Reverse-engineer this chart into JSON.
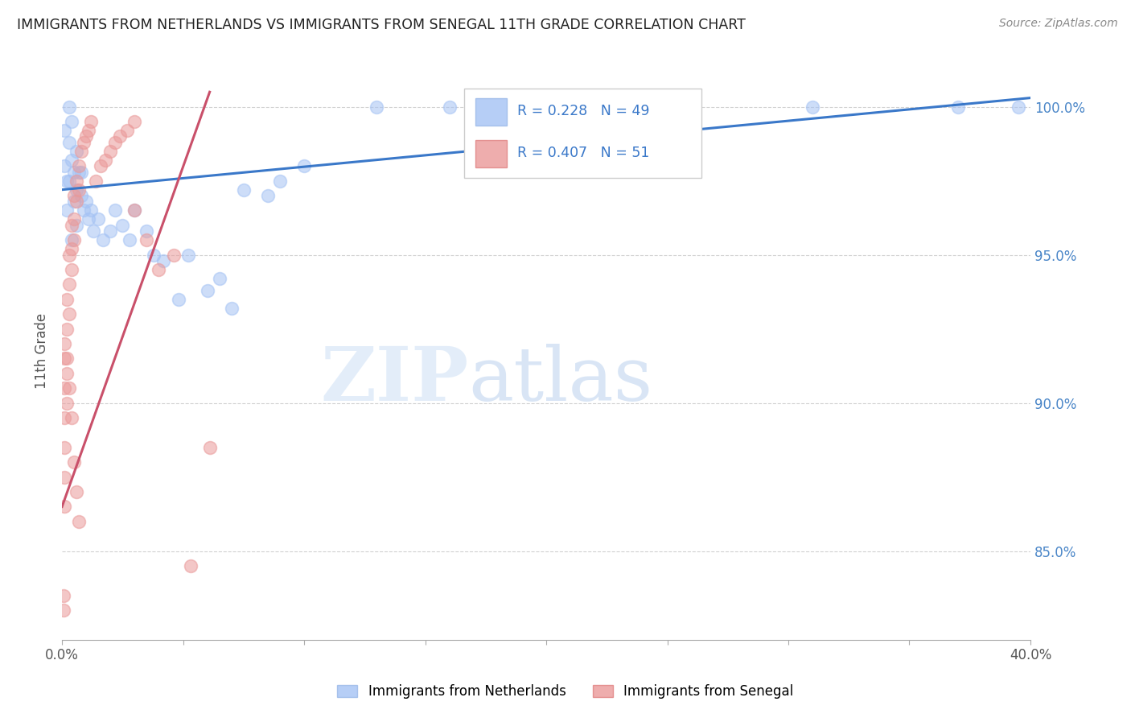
{
  "title": "IMMIGRANTS FROM NETHERLANDS VS IMMIGRANTS FROM SENEGAL 11TH GRADE CORRELATION CHART",
  "source": "Source: ZipAtlas.com",
  "ylabel": "11th Grade",
  "x_min": 0.0,
  "x_max": 0.4,
  "y_min": 82.0,
  "y_max": 101.5,
  "y_ticks": [
    85.0,
    90.0,
    95.0,
    100.0
  ],
  "y_tick_labels": [
    "85.0%",
    "90.0%",
    "95.0%",
    "100.0%"
  ],
  "x_ticks": [
    0.0,
    0.05,
    0.1,
    0.15,
    0.2,
    0.25,
    0.3,
    0.35,
    0.4
  ],
  "x_tick_labels": [
    "0.0%",
    "",
    "",
    "",
    "",
    "",
    "",
    "",
    "40.0%"
  ],
  "netherlands_R": 0.228,
  "netherlands_N": 49,
  "senegal_R": 0.407,
  "senegal_N": 51,
  "netherlands_color": "#a4c2f4",
  "senegal_color": "#ea9999",
  "netherlands_line_color": "#3a78c9",
  "senegal_line_color": "#c9506a",
  "background_color": "#ffffff",
  "watermark_zip": "ZIP",
  "watermark_atlas": "atlas",
  "legend_netherlands": "Immigrants from Netherlands",
  "legend_senegal": "Immigrants from Senegal",
  "nl_line_x0": 0.0,
  "nl_line_y0": 97.2,
  "nl_line_x1": 0.4,
  "nl_line_y1": 100.3,
  "sn_line_x0": 0.0,
  "sn_line_y0": 86.5,
  "sn_line_x1": 0.061,
  "sn_line_y1": 100.5,
  "netherlands_x": [
    0.001,
    0.001,
    0.002,
    0.003,
    0.003,
    0.004,
    0.004,
    0.005,
    0.005,
    0.006,
    0.006,
    0.007,
    0.008,
    0.009,
    0.01,
    0.011,
    0.012,
    0.013,
    0.015,
    0.017,
    0.02,
    0.022,
    0.025,
    0.028,
    0.03,
    0.035,
    0.038,
    0.042,
    0.048,
    0.052,
    0.06,
    0.065,
    0.07,
    0.075,
    0.085,
    0.09,
    0.1,
    0.13,
    0.16,
    0.2,
    0.25,
    0.31,
    0.37,
    0.395,
    0.002,
    0.003,
    0.004,
    0.006,
    0.008
  ],
  "netherlands_y": [
    99.2,
    98.0,
    97.5,
    100.0,
    98.8,
    99.5,
    98.2,
    97.8,
    96.8,
    98.5,
    97.2,
    97.8,
    97.0,
    96.5,
    96.8,
    96.2,
    96.5,
    95.8,
    96.2,
    95.5,
    95.8,
    96.5,
    96.0,
    95.5,
    96.5,
    95.8,
    95.0,
    94.8,
    93.5,
    95.0,
    93.8,
    94.2,
    93.2,
    97.2,
    97.0,
    97.5,
    98.0,
    100.0,
    100.0,
    100.0,
    100.0,
    100.0,
    100.0,
    100.0,
    96.5,
    97.5,
    95.5,
    96.0,
    97.8
  ],
  "senegal_x": [
    0.0005,
    0.0005,
    0.001,
    0.001,
    0.001,
    0.001,
    0.001,
    0.001,
    0.002,
    0.002,
    0.002,
    0.002,
    0.003,
    0.003,
    0.003,
    0.004,
    0.004,
    0.004,
    0.005,
    0.005,
    0.005,
    0.006,
    0.006,
    0.007,
    0.007,
    0.008,
    0.009,
    0.01,
    0.011,
    0.012,
    0.014,
    0.016,
    0.018,
    0.02,
    0.022,
    0.024,
    0.027,
    0.03,
    0.03,
    0.035,
    0.04,
    0.046,
    0.053,
    0.061,
    0.001,
    0.002,
    0.003,
    0.004,
    0.005,
    0.006,
    0.007
  ],
  "senegal_y": [
    83.5,
    83.0,
    91.5,
    90.5,
    89.5,
    88.5,
    87.5,
    86.5,
    93.5,
    92.5,
    91.5,
    90.0,
    95.0,
    94.0,
    93.0,
    96.0,
    95.2,
    94.5,
    97.0,
    96.2,
    95.5,
    97.5,
    96.8,
    98.0,
    97.2,
    98.5,
    98.8,
    99.0,
    99.2,
    99.5,
    97.5,
    98.0,
    98.2,
    98.5,
    98.8,
    99.0,
    99.2,
    99.5,
    96.5,
    95.5,
    94.5,
    95.0,
    84.5,
    88.5,
    92.0,
    91.0,
    90.5,
    89.5,
    88.0,
    87.0,
    86.0
  ]
}
